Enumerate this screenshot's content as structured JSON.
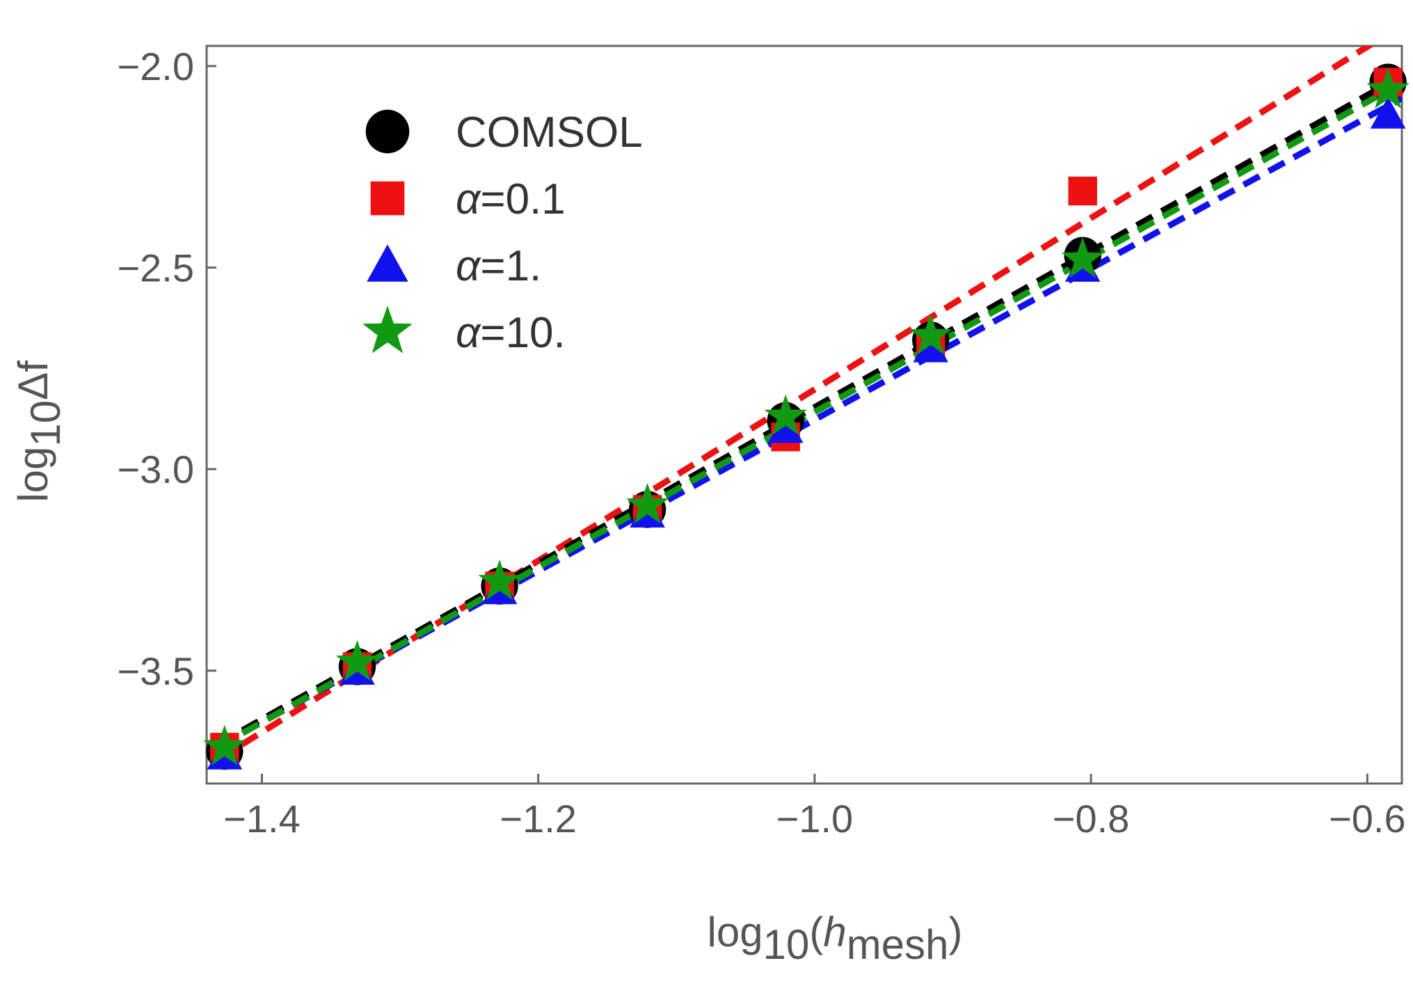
{
  "chart_data": {
    "type": "scatter",
    "title": "",
    "xlabel": {
      "base": "log",
      "sub": "10",
      "open": "(",
      "var": "h",
      "var_sub": "mesh",
      "close": ")"
    },
    "ylabel": {
      "base": "log",
      "sub": "10",
      "rest": "Δf"
    },
    "xlim": [
      -1.44,
      -0.575
    ],
    "ylim": [
      -3.78,
      -1.95
    ],
    "xticks": [
      -1.4,
      -1.2,
      -1.0,
      -0.8,
      -0.6
    ],
    "yticks": [
      -3.5,
      -3.0,
      -2.5,
      -2.0
    ],
    "xtick_labels": [
      "−1.4",
      "−1.2",
      "−1.0",
      "−0.8",
      "−0.6"
    ],
    "ytick_labels": [
      "−3.5",
      "−3.0",
      "−2.5",
      "−2.0"
    ],
    "legend_position": "top-left",
    "series": [
      {
        "name": "COMSOL",
        "marker": "circle",
        "color": "#000000",
        "x": [
          -1.427,
          -1.331,
          -1.228,
          -1.121,
          -1.021,
          -0.916,
          -0.806,
          -0.585
        ],
        "y": [
          -3.7,
          -3.49,
          -3.29,
          -3.1,
          -2.88,
          -2.68,
          -2.47,
          -2.04
        ],
        "fit": {
          "x": [
            -1.427,
            -0.585
          ],
          "y": [
            -3.68,
            -2.05
          ]
        }
      },
      {
        "name": "α=0.1",
        "marker": "square",
        "color": "#ee1111",
        "x": [
          -1.427,
          -1.331,
          -1.228,
          -1.121,
          -1.021,
          -0.916,
          -0.806,
          -0.585
        ],
        "y": [
          -3.69,
          -3.49,
          -3.29,
          -3.1,
          -2.92,
          -2.69,
          -2.31,
          -2.04
        ],
        "fit": {
          "x": [
            -1.427,
            -0.585
          ],
          "y": [
            -3.71,
            -1.92
          ]
        }
      },
      {
        "name": "α=1.",
        "marker": "triangle",
        "color": "#1111ee",
        "x": [
          -1.427,
          -1.331,
          -1.228,
          -1.121,
          -1.021,
          -0.916,
          -0.806,
          -0.585
        ],
        "y": [
          -3.71,
          -3.5,
          -3.3,
          -3.11,
          -2.9,
          -2.7,
          -2.5,
          -2.12
        ],
        "fit": {
          "x": [
            -1.427,
            -0.585
          ],
          "y": [
            -3.67,
            -2.09
          ]
        }
      },
      {
        "name": "α=10.",
        "marker": "star",
        "color": "#119911",
        "x": [
          -1.427,
          -1.331,
          -1.228,
          -1.121,
          -1.021,
          -0.916,
          -0.806,
          -0.585
        ],
        "y": [
          -3.69,
          -3.48,
          -3.28,
          -3.09,
          -2.87,
          -2.67,
          -2.48,
          -2.06
        ],
        "fit": {
          "x": [
            -1.427,
            -0.585
          ],
          "y": [
            -3.68,
            -2.06
          ]
        }
      }
    ]
  }
}
